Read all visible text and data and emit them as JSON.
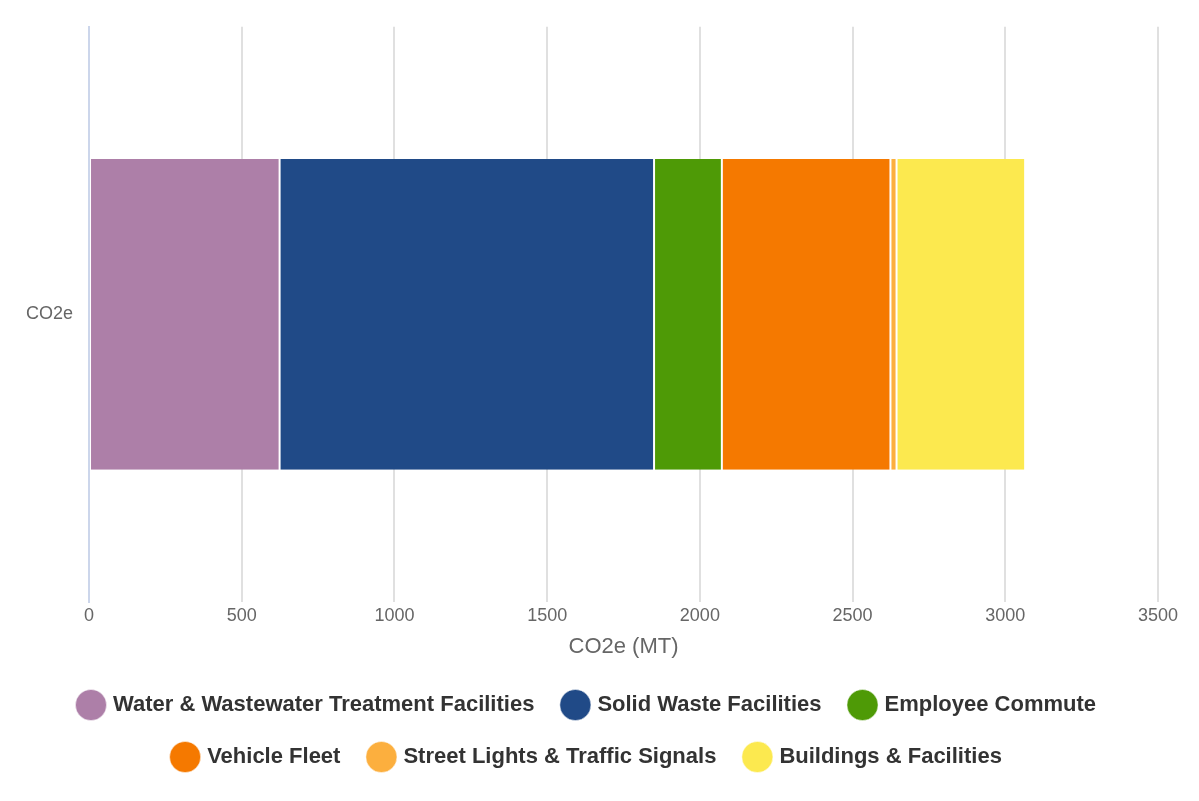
{
  "chart_data": {
    "type": "bar",
    "orientation": "horizontal",
    "stacked": true,
    "categories": [
      "CO2e"
    ],
    "xlabel": "CO2e (MT)",
    "xlim": [
      0,
      3500
    ],
    "xticks": [
      0,
      500,
      1000,
      1500,
      2000,
      2500,
      3000,
      3500
    ],
    "grid": "x",
    "legend": "bottom",
    "series": [
      {
        "name": "Water & Wastewater Treatment Facilities",
        "color": "#ad7fa8",
        "values": [
          624
        ]
      },
      {
        "name": "Solid Waste Facilities",
        "color": "#204a87",
        "values": [
          1226
        ]
      },
      {
        "name": "Employee Commute",
        "color": "#4e9a06",
        "values": [
          222
        ]
      },
      {
        "name": "Vehicle Fleet",
        "color": "#f57900",
        "values": [
          552
        ]
      },
      {
        "name": "Street Lights & Traffic Signals",
        "color": "#fcaf3e",
        "values": [
          20
        ]
      },
      {
        "name": "Buildings & Facilities",
        "color": "#fce94f",
        "values": [
          421
        ]
      }
    ]
  }
}
